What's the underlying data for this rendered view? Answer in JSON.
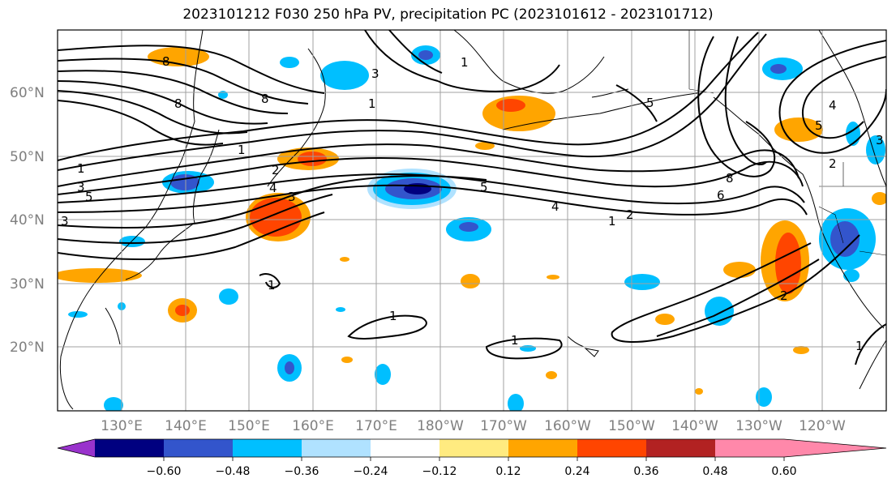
{
  "title": "2023101212 F030 250 hPa PV, precipitation PC (2023101612 - 2023101712)",
  "latitude_labels": [
    "60°N",
    "50°N",
    "40°N",
    "30°N",
    "20°N"
  ],
  "longitude_labels": [
    "130°E",
    "140°E",
    "150°E",
    "160°E",
    "170°E",
    "180°W",
    "170°W",
    "160°W",
    "150°W",
    "140°W",
    "130°W",
    "120°W"
  ],
  "colorbar": {
    "colors": [
      "#9933cc",
      "#000080",
      "#3355cc",
      "#00bfff",
      "#b0e2ff",
      "#ffffff",
      "#ffeb80",
      "#ffa500",
      "#ff4500",
      "#b22222",
      "#ff88aa"
    ],
    "tick_labels": [
      "−0.60",
      "−0.48",
      "−0.36",
      "−0.24",
      "−0.12",
      "0.12",
      "0.24",
      "0.36",
      "0.48",
      "0.60"
    ]
  },
  "contour_labels": [
    "8",
    "8",
    "8",
    "3",
    "1",
    "1",
    "1",
    "3",
    "3",
    "5",
    "4",
    "3",
    "2",
    "5",
    "4",
    "1",
    "2",
    "5",
    "8",
    "6",
    "1",
    "2",
    "1",
    "1",
    "1",
    "2",
    "5",
    "3",
    "1",
    "4"
  ]
}
